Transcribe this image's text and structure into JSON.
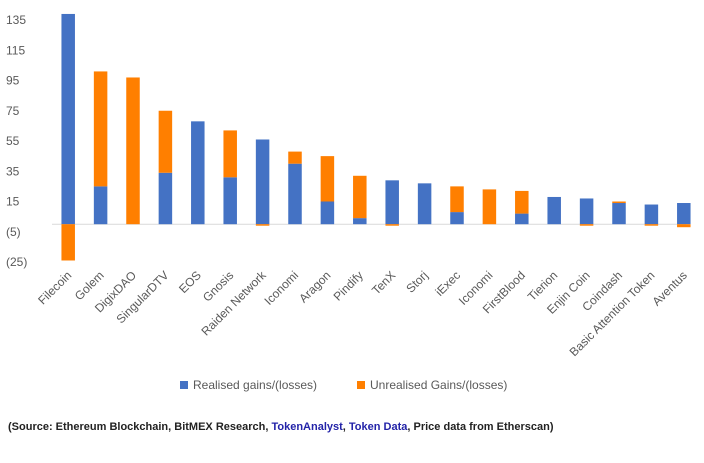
{
  "chart_data": {
    "type": "bar",
    "stacked": true,
    "categories": [
      "Filecoin",
      "Golem",
      "DigixDAO",
      "SingularDTV",
      "EOS",
      "Gnosis",
      "Raiden Network",
      "Iconomi",
      "Aragon",
      "Pindify",
      "TenX",
      "Storj",
      "iExec",
      "Iconomi",
      "FirstBlood",
      "Tierion",
      "Enjin Coin",
      "Coindash",
      "Basic Attention Token",
      "Aventus"
    ],
    "series": [
      {
        "name": "Realised gains/(losses)",
        "color": "#4472c4",
        "values": [
          139,
          25,
          0,
          34,
          68,
          31,
          56,
          40,
          15,
          4,
          29,
          27,
          8,
          0,
          7,
          18,
          17,
          14,
          13,
          14
        ]
      },
      {
        "name": "Unrealised Gains/(losses)",
        "color": "#ff7f00",
        "values": [
          -24,
          76,
          97,
          41,
          0,
          31,
          -1,
          8,
          30,
          28,
          -1,
          0,
          17,
          23,
          15,
          0,
          -1,
          1,
          -1,
          -2
        ]
      }
    ],
    "y_ticks": [
      135,
      115,
      95,
      75,
      55,
      35,
      15,
      -5,
      -25
    ],
    "y_tick_labels": [
      "135",
      "115",
      "95",
      "75",
      "55",
      "35",
      "15",
      "(5)",
      "(25)"
    ],
    "ylim": [
      -25,
      140
    ],
    "grid": false,
    "legend_position": "bottom"
  },
  "source": {
    "prefix": "(Source: Ethereum Blockchain, BitMEX Research, ",
    "link1": "TokenAnalyst",
    "sep1": ", ",
    "link2": "Token Data",
    "suffix": ", Price data from Etherscan)"
  }
}
